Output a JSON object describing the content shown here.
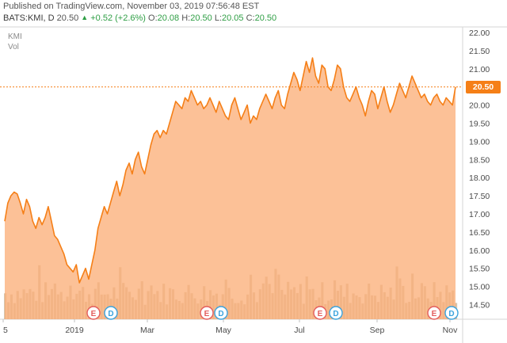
{
  "header": {
    "published": "Published on TradingView.com, November 03, 2019 07:56:48 EST",
    "symbol": "BATS:KMI, D",
    "last": "20.50",
    "change": "+0.52 (+2.6%)",
    "o_label": "O:",
    "o_value": "20.08",
    "h_label": "H:",
    "h_value": "20.50",
    "l_label": "L:",
    "l_value": "20.05",
    "c_label": "C:",
    "c_value": "20.50"
  },
  "legend": {
    "series": "KMI",
    "volume": "Vol"
  },
  "colors": {
    "line": "#f57f17",
    "fill": "#fbb07a",
    "volume": "#c8b090",
    "axis_text": "#4a4a4a"
  },
  "price_tag": "20.50",
  "chart_data": {
    "type": "area",
    "y_ticks": [
      "22.00",
      "21.50",
      "21.00",
      "20.50",
      "20.00",
      "19.50",
      "19.00",
      "18.50",
      "18.00",
      "17.50",
      "17.00",
      "16.50",
      "16.00",
      "15.50",
      "15.00",
      "14.50"
    ],
    "x_ticks": [
      "5",
      "2019",
      "Mar",
      "May",
      "Jul",
      "Sep",
      "Nov"
    ],
    "ylim": [
      14.2,
      22.1
    ],
    "close": [
      16.8,
      17.3,
      17.5,
      17.6,
      17.55,
      17.3,
      17.0,
      17.4,
      17.2,
      16.8,
      16.6,
      16.9,
      16.7,
      16.9,
      17.2,
      16.8,
      16.4,
      16.3,
      16.1,
      15.9,
      15.6,
      15.5,
      15.4,
      15.6,
      15.1,
      15.3,
      15.5,
      15.2,
      15.6,
      16.0,
      16.6,
      16.9,
      17.2,
      17.0,
      17.3,
      17.6,
      17.9,
      17.5,
      17.8,
      18.2,
      18.4,
      18.1,
      18.5,
      18.7,
      18.3,
      18.1,
      18.5,
      18.9,
      19.2,
      19.3,
      19.1,
      19.3,
      19.2,
      19.5,
      19.8,
      20.1,
      20.0,
      19.9,
      20.2,
      20.1,
      20.4,
      20.2,
      20.0,
      20.1,
      19.9,
      20.0,
      20.2,
      20.0,
      19.8,
      20.1,
      19.9,
      19.7,
      19.6,
      20.0,
      20.2,
      19.9,
      19.6,
      19.8,
      20.0,
      19.5,
      19.7,
      19.6,
      19.9,
      20.1,
      20.3,
      20.1,
      19.9,
      20.2,
      20.4,
      20.0,
      19.9,
      20.3,
      20.6,
      20.9,
      20.7,
      20.4,
      20.8,
      21.2,
      20.9,
      21.3,
      20.8,
      20.6,
      21.1,
      21.0,
      20.5,
      20.4,
      20.7,
      21.1,
      21.0,
      20.5,
      20.2,
      20.1,
      20.3,
      20.5,
      20.2,
      20.0,
      19.7,
      20.1,
      20.4,
      20.3,
      19.9,
      20.2,
      20.5,
      20.1,
      19.8,
      20.0,
      20.3,
      20.6,
      20.4,
      20.2,
      20.5,
      20.8,
      20.6,
      20.4,
      20.2,
      20.3,
      20.1,
      20.0,
      20.2,
      20.3,
      20.1,
      20.0,
      20.2,
      20.1,
      20.0,
      20.5
    ],
    "events": [
      {
        "label": "E",
        "type": "earnings"
      },
      {
        "label": "D",
        "type": "dividend"
      },
      {
        "label": "E",
        "type": "earnings"
      },
      {
        "label": "D",
        "type": "dividend"
      },
      {
        "label": "E",
        "type": "earnings"
      },
      {
        "label": "D",
        "type": "dividend"
      },
      {
        "label": "E",
        "type": "earnings"
      },
      {
        "label": "D",
        "type": "dividend"
      }
    ],
    "grid": false
  }
}
